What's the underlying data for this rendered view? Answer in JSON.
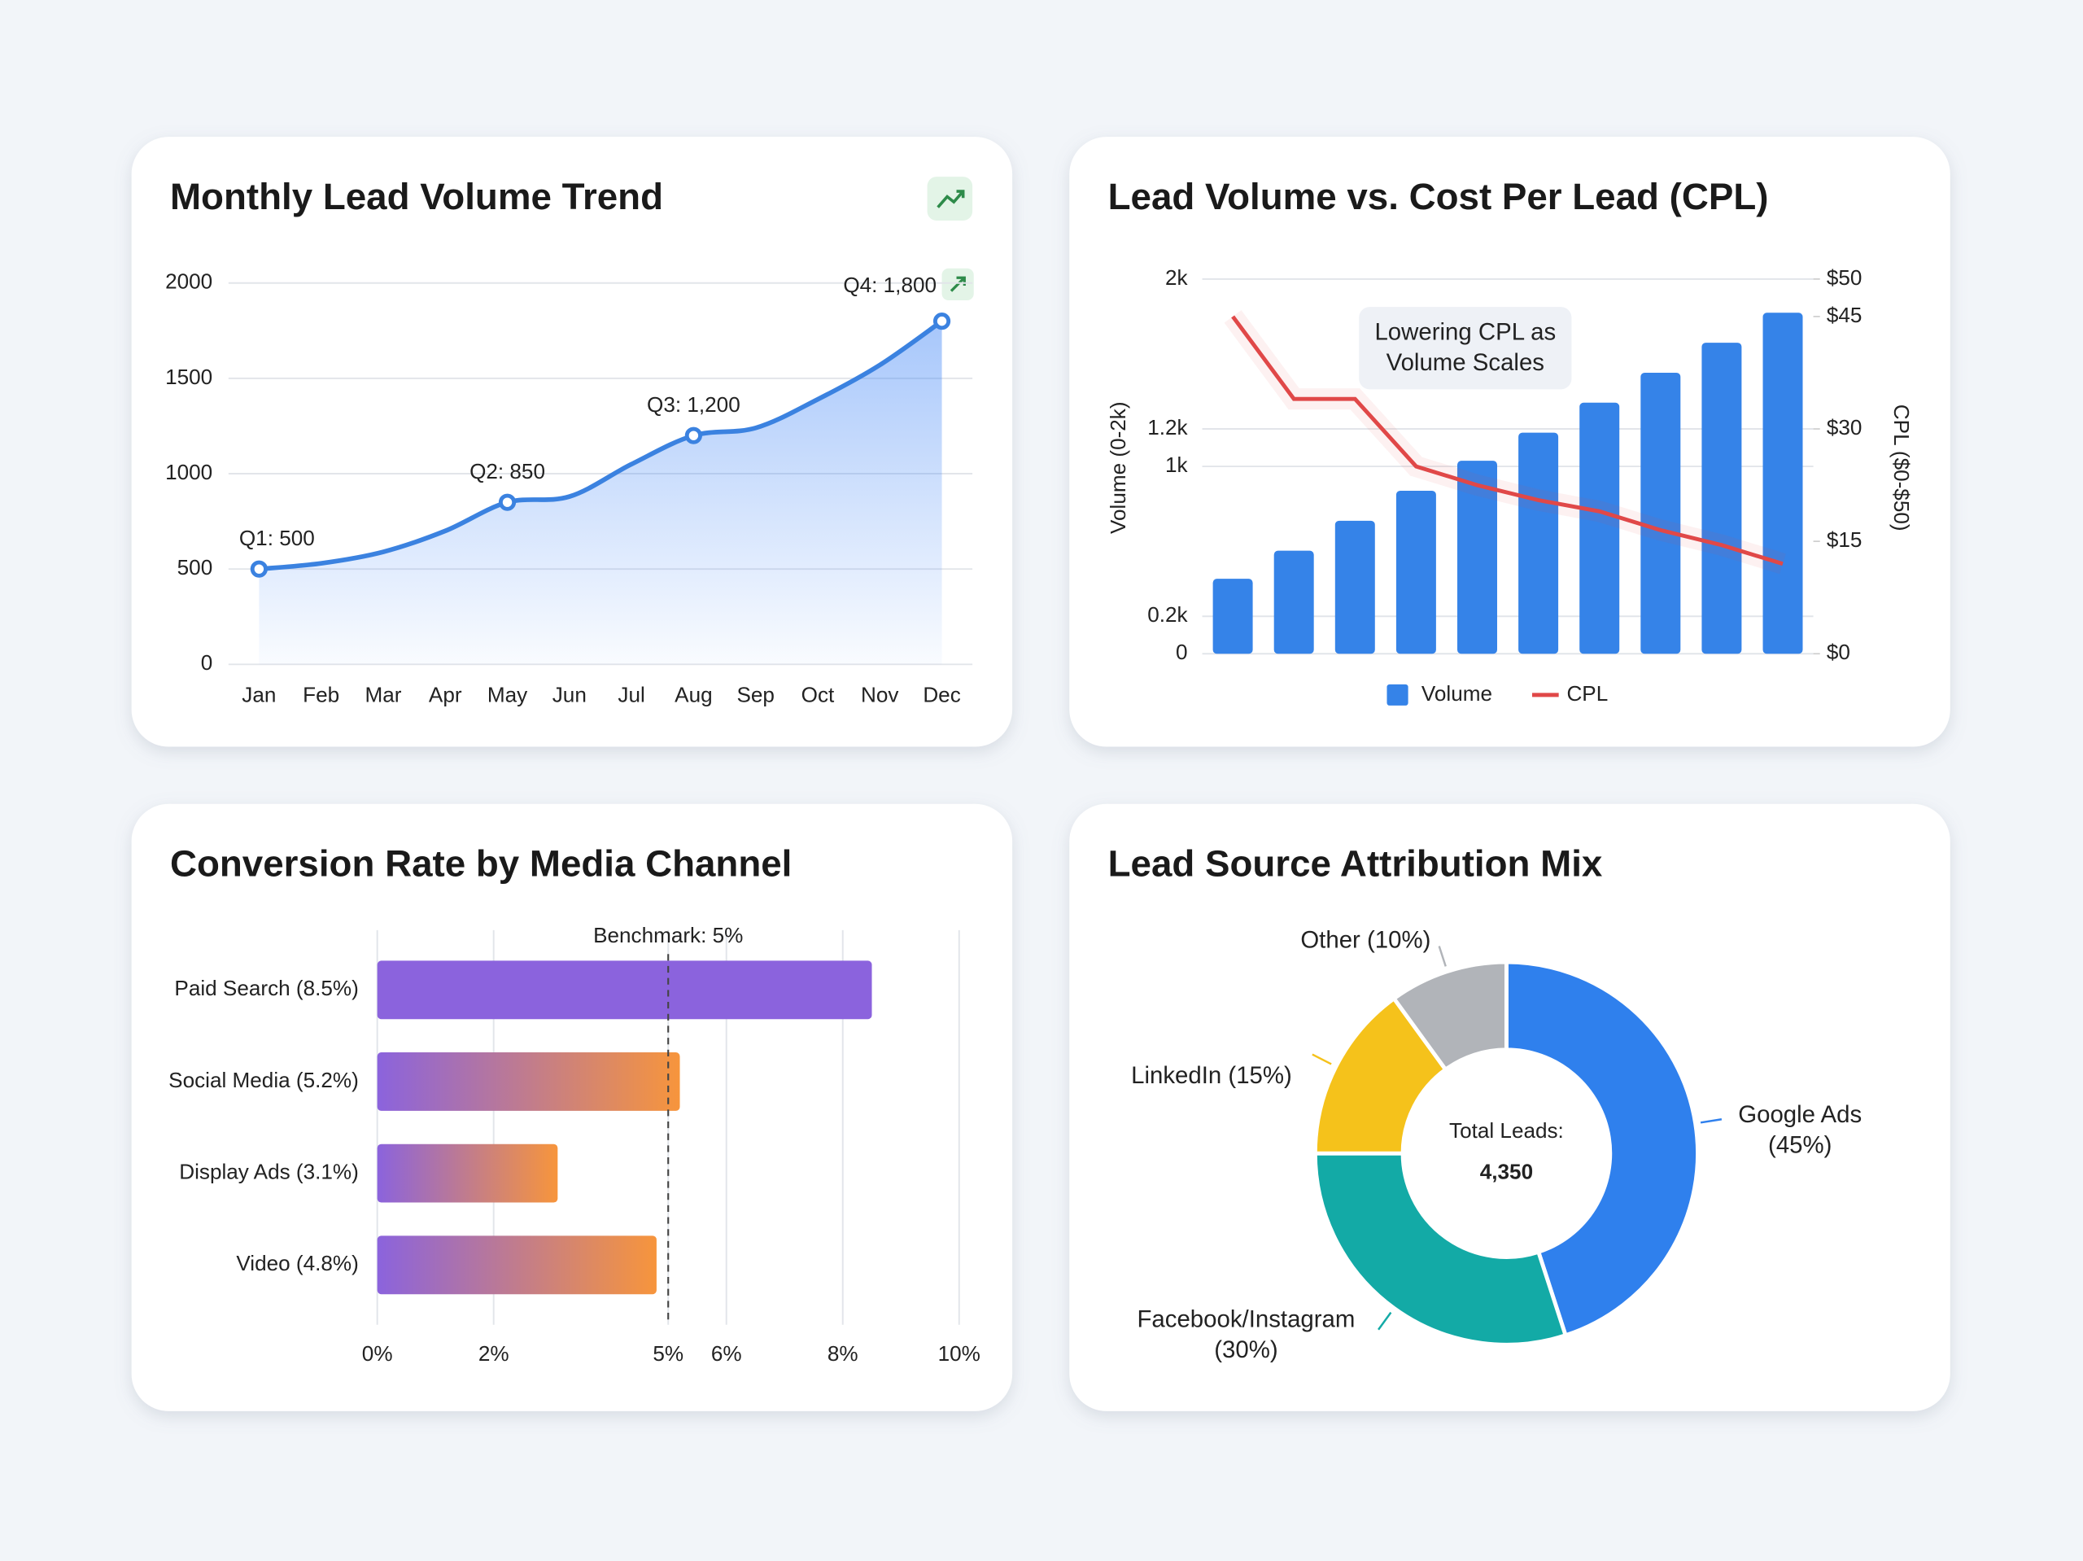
{
  "chart_data": [
    {
      "type": "line",
      "title": "Monthly Lead Volume Trend",
      "categories": [
        "Jan",
        "Feb",
        "Mar",
        "Apr",
        "May",
        "Jun",
        "Jul",
        "Aug",
        "Sep",
        "Oct",
        "Nov",
        "Dec"
      ],
      "values": [
        500,
        530,
        590,
        700,
        850,
        880,
        1050,
        1200,
        1240,
        1390,
        1570,
        1800
      ],
      "value_labels": [
        "Q1: 500",
        null,
        null,
        null,
        "Q2: 850",
        null,
        null,
        "Q3: 1,200",
        null,
        null,
        null,
        "Q4: 1,800"
      ],
      "color": "#3b82e0",
      "area": true,
      "ylim": [
        0,
        2000
      ],
      "yticks": [
        0,
        500,
        1000,
        1500,
        2000
      ],
      "grid": true
    },
    {
      "type": "combo",
      "title": "Lead Volume vs. Cost Per Lead (CPL)",
      "categories": [
        null,
        null,
        null,
        null,
        null,
        null,
        null,
        null,
        null,
        null
      ],
      "series": [
        {
          "name": "Volume",
          "type": "bar",
          "color": "#3583e8",
          "values": [
            400,
            550,
            710,
            870,
            1030,
            1180,
            1340,
            1500,
            1660,
            1820
          ]
        },
        {
          "name": "CPL",
          "type": "line",
          "color": "#e04848",
          "axis": "y2",
          "values": [
            45,
            34,
            34,
            25,
            22.5,
            20.5,
            19,
            16.5,
            14.5,
            12
          ]
        }
      ],
      "ylabel": "Volume (0-2k)",
      "y2label": "CPL ($0-$50)",
      "ylim": [
        0,
        2000
      ],
      "yticks": [
        0,
        {
          "value": 200,
          "label": "0.2k"
        },
        {
          "value": 1000,
          "label": "1k"
        },
        {
          "value": 1200,
          "label": "1.2k"
        },
        {
          "value": 2000,
          "label": "2k"
        }
      ],
      "y2lim": [
        0,
        50
      ],
      "y2ticks": [
        {
          "value": 0,
          "label": "$0"
        },
        {
          "value": 15,
          "label": "$15"
        },
        {
          "value": 30,
          "label": "$30"
        },
        {
          "value": 45,
          "label": "$45"
        },
        {
          "value": 50,
          "label": "$50"
        }
      ],
      "annotation": "Lowering CPL as Volume Scales",
      "legend": "bottom",
      "grid": true
    },
    {
      "type": "hbar",
      "title": "Conversion Rate by Media Channel",
      "categories": [
        "Paid Search (8.5%)",
        "Social Media (5.2%)",
        "Display Ads (3.1%)",
        "Video (4.8%)"
      ],
      "values": [
        8.5,
        5.2,
        3.1,
        4.8
      ],
      "colors": [
        [
          "#8b63dd"
        ],
        [
          "#8b63dd",
          "#f7953c"
        ],
        [
          "#8b63dd",
          "#f7953c"
        ],
        [
          "#8b63dd",
          "#f7953c"
        ]
      ],
      "xlim": [
        0,
        10
      ],
      "xticks": [
        {
          "value": 0,
          "label": "0%"
        },
        {
          "value": 2,
          "label": "2%"
        },
        {
          "value": 5,
          "label": "5%"
        },
        {
          "value": 6,
          "label": "6%"
        },
        {
          "value": 8,
          "label": "8%"
        },
        {
          "value": 10,
          "label": "10%"
        }
      ],
      "grid": true,
      "benchmark": {
        "value": 5,
        "label": "Benchmark: 5%"
      }
    },
    {
      "type": "donut",
      "title": "Lead Source Attribution Mix",
      "categories": [
        "Google Ads (45%)",
        "Facebook/Instagram (30%)",
        "LinkedIn (15%)",
        "Other (10%)"
      ],
      "values": [
        45,
        30,
        15,
        10
      ],
      "colors": [
        "#2f80ed",
        "#13aaa6",
        "#f5c21b",
        "#b1b4b9"
      ],
      "center_title": "Total Leads:",
      "center_value": "4,350"
    }
  ]
}
